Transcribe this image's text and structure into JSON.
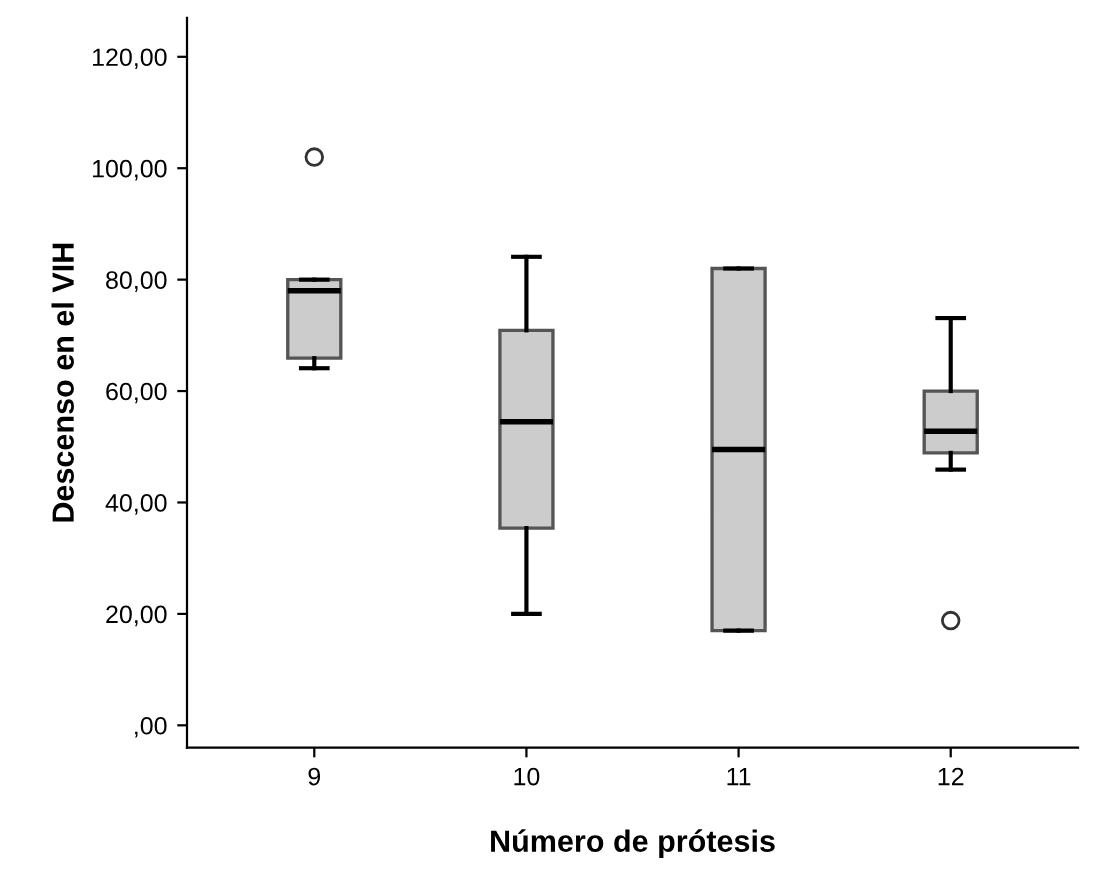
{
  "chart_data": {
    "type": "box",
    "xlabel": "Número de prótesis",
    "ylabel": "Descenso en el VIH",
    "categories": [
      "9",
      "10",
      "11",
      "12"
    ],
    "color": "#cccccc",
    "boxes": [
      {
        "low": 64.1,
        "q1": 65.9,
        "median": 78.0,
        "q3": 80.0,
        "high": 80.0,
        "outliers": [
          102.0
        ]
      },
      {
        "low": 20.0,
        "q1": 35.4,
        "median": 54.5,
        "q3": 70.9,
        "high": 84.1
      },
      {
        "low": 17.0,
        "q1": 17.0,
        "median": 49.5,
        "q3": 82.0,
        "high": 82.0
      },
      {
        "low": 45.9,
        "q1": 48.9,
        "median": 52.8,
        "q3": 60.0,
        "high": 73.1,
        "outliers": [
          18.8
        ]
      }
    ],
    "ylim": [
      -4,
      127
    ],
    "yticks": [
      {
        "value": 0,
        "label": ",00"
      },
      {
        "value": 20,
        "label": "20,00"
      },
      {
        "value": 40,
        "label": "40,00"
      },
      {
        "value": 60,
        "label": "60,00"
      },
      {
        "value": 80,
        "label": "80,00"
      },
      {
        "value": 100,
        "label": "100,00"
      },
      {
        "value": 120,
        "label": "120,00"
      }
    ],
    "grid": false,
    "legend": false
  }
}
